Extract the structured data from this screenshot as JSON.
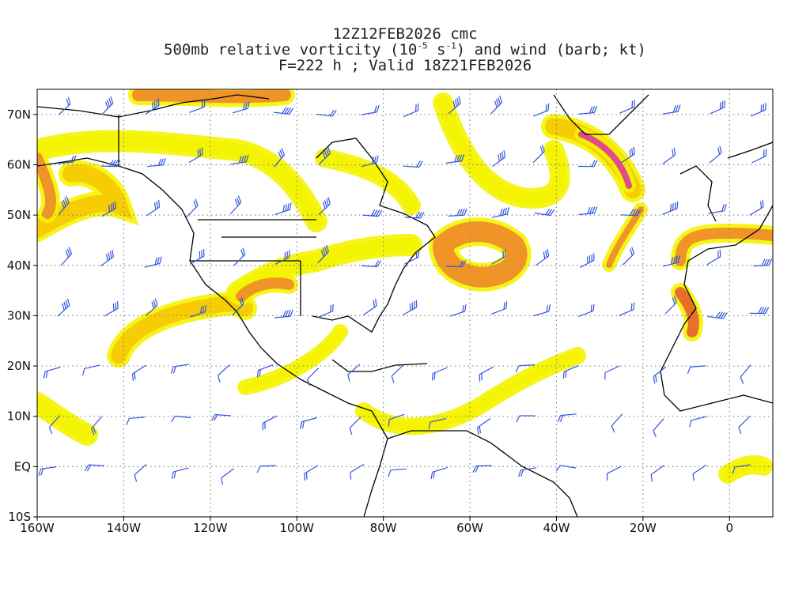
{
  "header": {
    "line1": "12Z12FEB2026 cmc",
    "line2_pre": "500mb relative vorticity (10",
    "line2_exp1": "-5",
    "line2_mid": " s",
    "line2_exp2": "-1",
    "line2_post": ") and wind (barb; kt)",
    "line3": "F=222 h ; Valid 18Z21FEB2026"
  },
  "map": {
    "projection": "cylindrical",
    "lon_range": [
      -160,
      10
    ],
    "lat_range": [
      -10,
      75
    ],
    "lat_labels": [
      "70N",
      "60N",
      "50N",
      "40N",
      "30N",
      "20N",
      "10N",
      "EQ",
      "10S"
    ],
    "lat_values": [
      70,
      60,
      50,
      40,
      30,
      20,
      10,
      0,
      -10
    ],
    "lon_labels": [
      "160W",
      "140W",
      "120W",
      "100W",
      "80W",
      "60W",
      "40W",
      "20W",
      "0"
    ],
    "lon_values": [
      -160,
      -140,
      -120,
      -100,
      -80,
      -60,
      -40,
      -20,
      0
    ],
    "colors": {
      "vort_low": "#f4f400",
      "vort_mid": "#f8c800",
      "vort_high": "#f08a2a",
      "vort_peak": "#e8602a",
      "vort_max": "#e0389a",
      "barb": "#3355dd",
      "coast": "#000000",
      "grid": "#888888"
    }
  }
}
